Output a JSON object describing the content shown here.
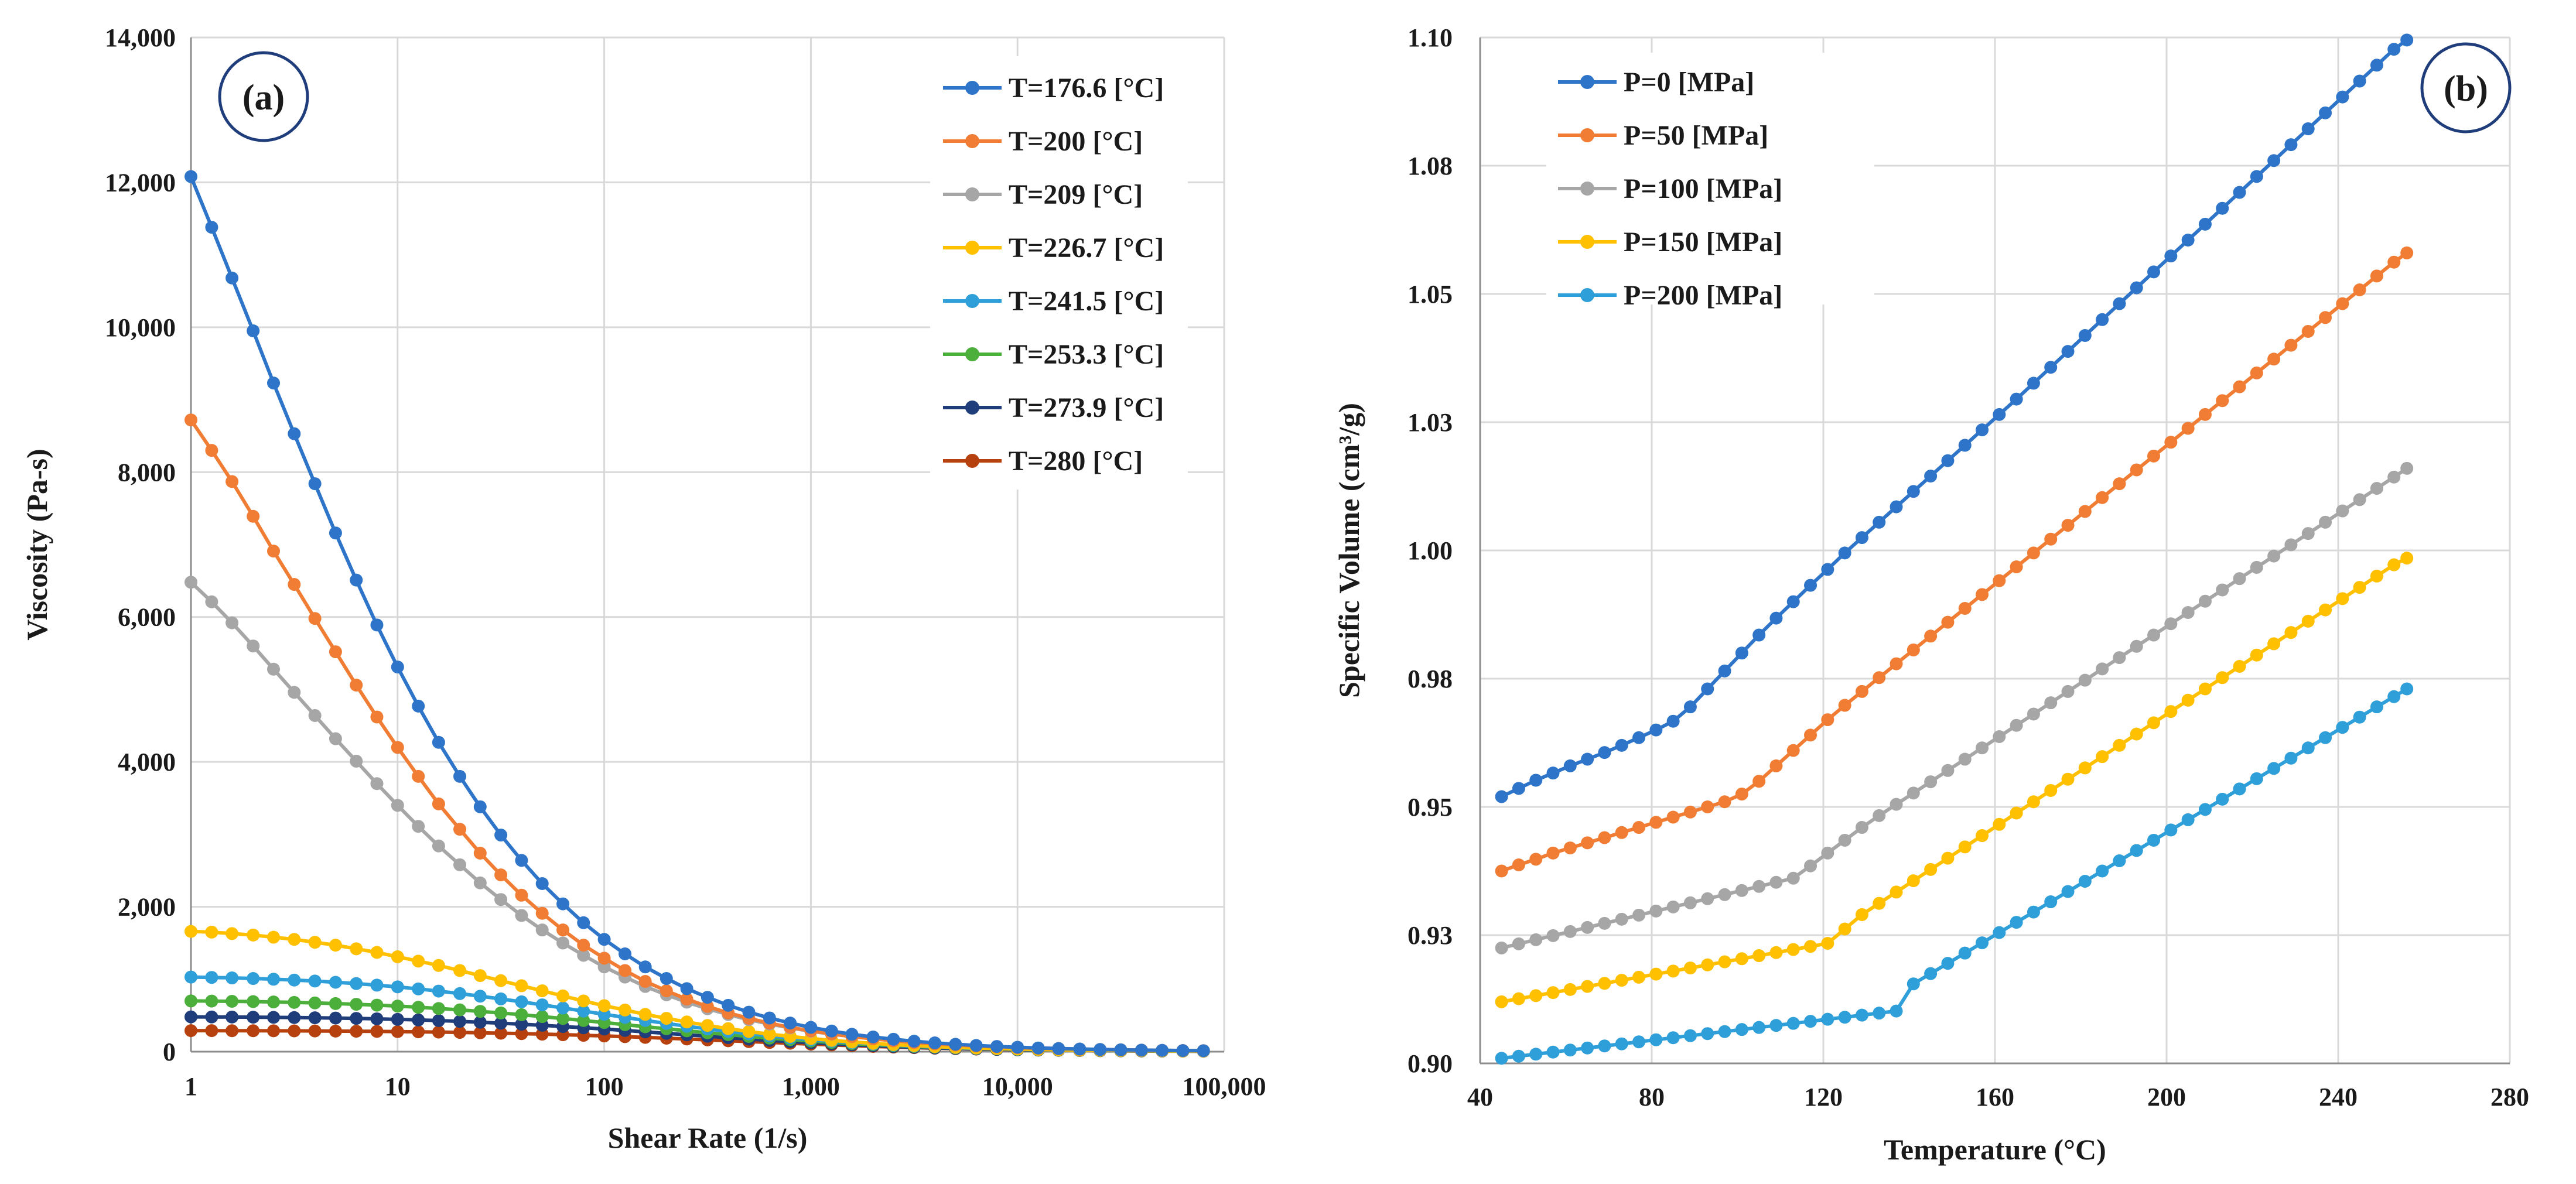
{
  "chart_data": [
    {
      "type": "line",
      "badge": "(a)",
      "xlabel": "Shear Rate (1/s)",
      "ylabel": "Viscosity (Pa-s)",
      "xscale": "log",
      "xlim": [
        1,
        100000
      ],
      "ylim": [
        0,
        14000
      ],
      "x_ticks": [
        1,
        10,
        100,
        1000,
        10000,
        100000
      ],
      "x_tick_labels": [
        "1",
        "10",
        "100",
        "1,000",
        "10,000",
        "100,000"
      ],
      "y_ticks": [
        0,
        2000,
        4000,
        6000,
        8000,
        10000,
        12000,
        14000
      ],
      "y_tick_labels": [
        "0",
        "2,000",
        "4,000",
        "6,000",
        "8,000",
        "10,000",
        "12,000",
        "14,000"
      ],
      "grid": true,
      "legend_position": "top-right",
      "x": [
        1,
        1.26,
        1.58,
        2,
        2.51,
        3.16,
        3.98,
        5.01,
        6.31,
        7.94,
        10,
        12.6,
        15.8,
        20,
        25.1,
        31.6,
        39.8,
        50.1,
        63.1,
        79.4,
        100,
        126,
        158,
        200,
        251,
        316,
        398,
        501,
        631,
        794,
        1000,
        1260,
        1580,
        2000,
        2510,
        3160,
        3980,
        5010,
        6310,
        7940,
        10000,
        12600,
        15800,
        20000,
        25100,
        31600,
        39800,
        50100,
        63100,
        79400
      ],
      "series": [
        {
          "name": "T=176.6 [°C]",
          "color": "#2e75c9",
          "values": [
            12080,
            11380,
            10680,
            9950,
            9230,
            8530,
            7840,
            7160,
            6510,
            5890,
            5310,
            4770,
            4270,
            3800,
            3380,
            2990,
            2640,
            2320,
            2040,
            1780,
            1550,
            1350,
            1170,
            1010,
            870,
            750,
            640,
            545,
            465,
            395,
            335,
            285,
            240,
            203,
            171,
            144,
            121,
            102,
            86,
            72,
            61,
            51,
            43,
            36,
            30,
            25,
            21,
            18,
            15,
            13
          ]
        },
        {
          "name": "T=200 [°C]",
          "color": "#f07d33",
          "values": [
            8720,
            8300,
            7870,
            7390,
            6910,
            6450,
            5980,
            5520,
            5060,
            4620,
            4200,
            3800,
            3420,
            3070,
            2740,
            2440,
            2160,
            1910,
            1680,
            1470,
            1290,
            1120,
            970,
            840,
            725,
            625,
            535,
            460,
            393,
            336,
            287,
            245,
            208,
            177,
            150,
            127,
            108,
            92,
            78,
            66,
            56,
            47,
            40,
            34,
            29,
            24,
            20,
            17,
            15,
            13
          ]
        },
        {
          "name": "T=209 [°C]",
          "color": "#a6a6a6",
          "values": [
            6480,
            6210,
            5920,
            5600,
            5280,
            4960,
            4640,
            4320,
            4010,
            3700,
            3400,
            3110,
            2840,
            2580,
            2330,
            2100,
            1880,
            1680,
            1500,
            1330,
            1170,
            1030,
            900,
            785,
            683,
            592,
            512,
            442,
            381,
            328,
            282,
            242,
            208,
            178,
            152,
            130,
            111,
            95,
            81,
            69,
            59,
            50,
            43,
            36,
            31,
            26,
            22,
            19,
            16,
            14
          ]
        },
        {
          "name": "T=226.7 [°C]",
          "color": "#ffc000",
          "values": [
            1660,
            1650,
            1630,
            1610,
            1580,
            1550,
            1510,
            1470,
            1420,
            1370,
            1310,
            1250,
            1190,
            1120,
            1050,
            980,
            910,
            840,
            770,
            700,
            635,
            575,
            515,
            460,
            410,
            362,
            318,
            278,
            242,
            210,
            181,
            156,
            134,
            114,
            97,
            83,
            70,
            59,
            50,
            42,
            36,
            30,
            25,
            21,
            18,
            15,
            13,
            11,
            9,
            8
          ]
        },
        {
          "name": "T=241.5 [°C]",
          "color": "#2e9fd8",
          "values": [
            1030,
            1025,
            1018,
            1010,
            1000,
            988,
            975,
            958,
            940,
            918,
            894,
            866,
            836,
            802,
            766,
            728,
            688,
            646,
            603,
            560,
            516,
            473,
            431,
            390,
            351,
            314,
            279,
            247,
            217,
            190,
            165,
            143,
            123,
            106,
            91,
            77,
            66,
            56,
            47,
            40,
            34,
            28,
            24,
            20,
            17,
            14,
            12,
            10,
            8,
            7
          ]
        },
        {
          "name": "T=253.3 [°C]",
          "color": "#4caf3b",
          "values": [
            700,
            698,
            695,
            691,
            686,
            680,
            673,
            664,
            654,
            642,
            629,
            613,
            596,
            577,
            556,
            534,
            510,
            484,
            458,
            430,
            402,
            373,
            344,
            316,
            288,
            261,
            235,
            210,
            187,
            166,
            146,
            128,
            111,
            97,
            84,
            72,
            62,
            53,
            45,
            38,
            32,
            27,
            23,
            19,
            16,
            14,
            12,
            10,
            8,
            7
          ]
        },
        {
          "name": "T=273.9 [°C]",
          "color": "#1f3d7a",
          "values": [
            480,
            479,
            478,
            476,
            474,
            471,
            468,
            464,
            459,
            453,
            446,
            438,
            429,
            418,
            406,
            393,
            379,
            364,
            347,
            330,
            312,
            293,
            273,
            253,
            233,
            213,
            193,
            174,
            156,
            139,
            123,
            108,
            95,
            82,
            71,
            61,
            52,
            45,
            38,
            32,
            27,
            23,
            20,
            17,
            14,
            12,
            10,
            8,
            7,
            6
          ]
        },
        {
          "name": "T=280 [°C]",
          "color": "#b7410e",
          "values": [
            290,
            290,
            289,
            289,
            288,
            287,
            286,
            284,
            282,
            280,
            277,
            274,
            270,
            266,
            261,
            255,
            249,
            242,
            234,
            226,
            217,
            207,
            197,
            186,
            175,
            163,
            151,
            139,
            127,
            116,
            104,
            93,
            83,
            73,
            64,
            56,
            48,
            42,
            36,
            31,
            26,
            22,
            19,
            16,
            13,
            11,
            9,
            8,
            7,
            6
          ]
        }
      ]
    },
    {
      "type": "line",
      "badge": "(b)",
      "xlabel": "Temperature (°C)",
      "ylabel": "Specific Volume (cm³/g)",
      "xlim": [
        40,
        280
      ],
      "ylim": [
        0.9,
        1.1
      ],
      "x_ticks": [
        40,
        80,
        120,
        160,
        200,
        240,
        280
      ],
      "x_tick_labels": [
        "40",
        "80",
        "120",
        "160",
        "200",
        "240",
        "280"
      ],
      "y_ticks": [
        0.9,
        0.925,
        0.95,
        0.975,
        1.0,
        1.025,
        1.05,
        1.075,
        1.1
      ],
      "y_tick_labels": [
        "0.90",
        "0.93",
        "0.95",
        "0.98",
        "1.00",
        "1.03",
        "1.05",
        "1.08",
        "1.10"
      ],
      "grid": true,
      "legend_position": "top-left",
      "x": [
        45,
        49,
        53,
        57,
        61,
        65,
        69,
        73,
        77,
        81,
        85,
        89,
        93,
        97,
        101,
        105,
        109,
        113,
        117,
        121,
        125,
        129,
        133,
        137,
        141,
        145,
        149,
        153,
        157,
        161,
        165,
        169,
        173,
        177,
        181,
        185,
        189,
        193,
        197,
        201,
        205,
        209,
        213,
        217,
        221,
        225,
        229,
        233,
        237,
        241,
        245,
        249,
        253,
        256
      ],
      "series": [
        {
          "name": "P=0 [MPa]",
          "color": "#2e75c9",
          "values": [
            0.952,
            0.9536,
            0.9552,
            0.9566,
            0.958,
            0.9593,
            0.9606,
            0.962,
            0.9635,
            0.965,
            0.9667,
            0.9695,
            0.973,
            0.9765,
            0.98,
            0.9835,
            0.9868,
            0.99,
            0.9932,
            0.9963,
            0.9995,
            1.0025,
            1.0055,
            1.0085,
            1.0115,
            1.0145,
            1.0175,
            1.0205,
            1.0235,
            1.0265,
            1.0295,
            1.0326,
            1.0357,
            1.0388,
            1.0419,
            1.045,
            1.0481,
            1.0512,
            1.0543,
            1.0574,
            1.0605,
            1.0636,
            1.0667,
            1.0698,
            1.0729,
            1.076,
            1.0791,
            1.0822,
            1.0853,
            1.0884,
            1.0915,
            1.0946,
            1.0977,
            1.0995
          ]
        },
        {
          "name": "P=50 [MPa]",
          "color": "#f07d33",
          "values": [
            0.9375,
            0.9387,
            0.9398,
            0.941,
            0.942,
            0.943,
            0.944,
            0.945,
            0.946,
            0.947,
            0.948,
            0.949,
            0.95,
            0.951,
            0.9525,
            0.955,
            0.958,
            0.961,
            0.964,
            0.967,
            0.9698,
            0.9725,
            0.9752,
            0.9779,
            0.9806,
            0.9833,
            0.986,
            0.9887,
            0.9914,
            0.9941,
            0.9968,
            0.9995,
            1.0022,
            1.0049,
            1.0076,
            1.0103,
            1.013,
            1.0157,
            1.0184,
            1.0211,
            1.0238,
            1.0265,
            1.0292,
            1.0319,
            1.0346,
            1.0373,
            1.04,
            1.0427,
            1.0454,
            1.0481,
            1.0508,
            1.0535,
            1.0562,
            1.058
          ]
        },
        {
          "name": "P=100 [MPa]",
          "color": "#a6a6a6",
          "values": [
            0.9225,
            0.9233,
            0.9241,
            0.9249,
            0.9257,
            0.9265,
            0.9273,
            0.9281,
            0.9289,
            0.9297,
            0.9305,
            0.9313,
            0.9321,
            0.9329,
            0.9337,
            0.9345,
            0.9353,
            0.9361,
            0.9385,
            0.941,
            0.9435,
            0.946,
            0.9483,
            0.9505,
            0.9527,
            0.9549,
            0.9571,
            0.9593,
            0.9615,
            0.9637,
            0.9659,
            0.9681,
            0.9703,
            0.9725,
            0.9747,
            0.9769,
            0.9791,
            0.9813,
            0.9835,
            0.9857,
            0.9879,
            0.9901,
            0.9923,
            0.9945,
            0.9967,
            0.9989,
            1.0011,
            1.0033,
            1.0055,
            1.0077,
            1.0099,
            1.0121,
            1.0143,
            1.016
          ]
        },
        {
          "name": "P=150 [MPa]",
          "color": "#ffc000",
          "values": [
            0.912,
            0.9126,
            0.9132,
            0.9138,
            0.9144,
            0.915,
            0.9156,
            0.9162,
            0.9168,
            0.9174,
            0.918,
            0.9186,
            0.9192,
            0.9198,
            0.9204,
            0.921,
            0.9216,
            0.9222,
            0.9228,
            0.9234,
            0.9262,
            0.929,
            0.9312,
            0.9334,
            0.9356,
            0.9378,
            0.94,
            0.9422,
            0.9444,
            0.9466,
            0.9488,
            0.951,
            0.9532,
            0.9554,
            0.9576,
            0.9598,
            0.962,
            0.9642,
            0.9664,
            0.9686,
            0.9708,
            0.973,
            0.9752,
            0.9774,
            0.9796,
            0.9818,
            0.984,
            0.9862,
            0.9884,
            0.9906,
            0.9928,
            0.995,
            0.9972,
            0.9985
          ]
        },
        {
          "name": "P=200 [MPa]",
          "color": "#2e9fd8",
          "values": [
            0.901,
            0.9014,
            0.9018,
            0.9022,
            0.9026,
            0.903,
            0.9034,
            0.9038,
            0.9042,
            0.9046,
            0.905,
            0.9054,
            0.9058,
            0.9062,
            0.9066,
            0.907,
            0.9074,
            0.9078,
            0.9082,
            0.9086,
            0.909,
            0.9094,
            0.9098,
            0.9102,
            0.9155,
            0.9175,
            0.9195,
            0.9215,
            0.9235,
            0.9255,
            0.9275,
            0.9295,
            0.9315,
            0.9335,
            0.9355,
            0.9375,
            0.9395,
            0.9415,
            0.9435,
            0.9455,
            0.9475,
            0.9495,
            0.9515,
            0.9535,
            0.9555,
            0.9575,
            0.9595,
            0.9615,
            0.9635,
            0.9655,
            0.9675,
            0.9695,
            0.9715,
            0.973
          ]
        }
      ]
    }
  ]
}
